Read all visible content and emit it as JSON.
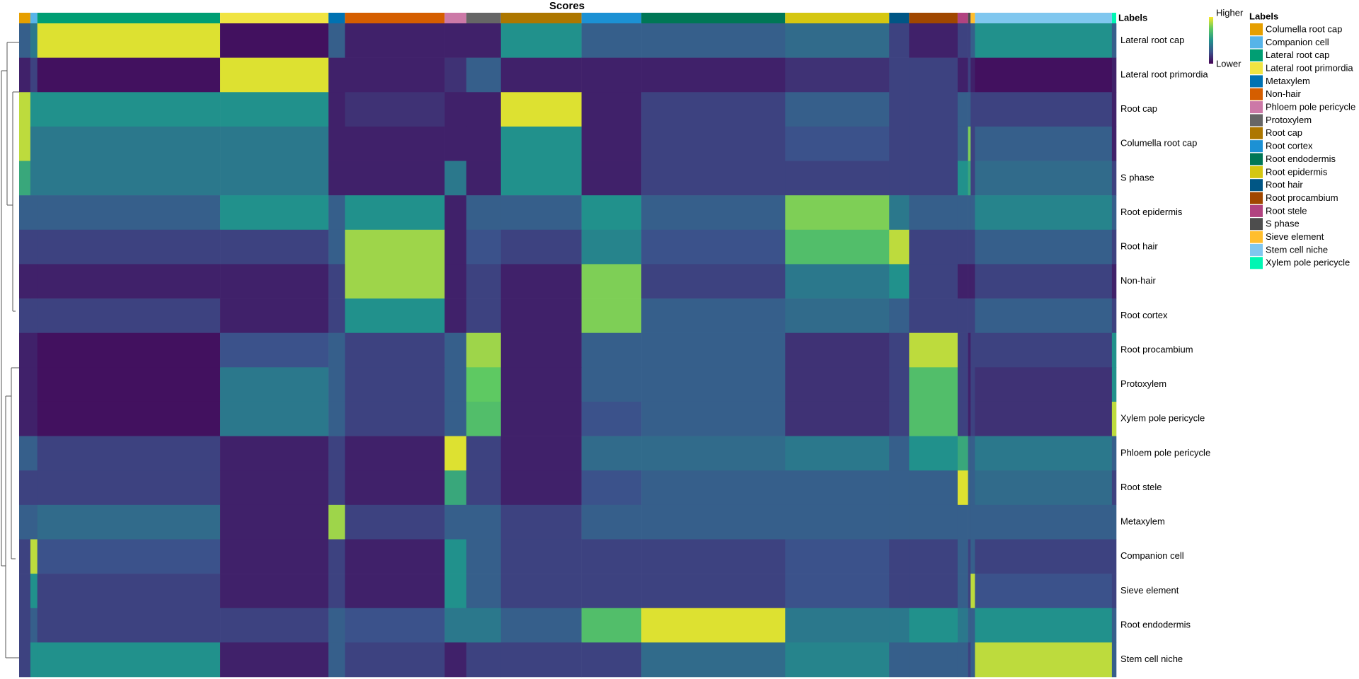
{
  "chart_data": {
    "type": "heatmap",
    "title": "Scores",
    "annotation_title": "Labels",
    "legend_title": "Labels",
    "colorbar_labels": [
      "Higher",
      "Lower"
    ],
    "zlim": [
      0,
      1
    ],
    "colormap": [
      "#440154",
      "#3b528b",
      "#21918c",
      "#5ec962",
      "#fde725"
    ],
    "groups": [
      {
        "label": "Columella root cap",
        "color": "#E69F00",
        "n": 13
      },
      {
        "label": "Companion cell",
        "color": "#56B4E9",
        "n": 8
      },
      {
        "label": "Lateral root cap",
        "color": "#009E73",
        "n": 211
      },
      {
        "label": "Lateral root primordia",
        "color": "#F0E442",
        "n": 125
      },
      {
        "label": "Metaxylem",
        "color": "#0072B2",
        "n": 19
      },
      {
        "label": "Non-hair",
        "color": "#D55E00",
        "n": 115
      },
      {
        "label": "Phloem pole pericycle",
        "color": "#CC79A7",
        "n": 25
      },
      {
        "label": "Protoxylem",
        "color": "#666666",
        "n": 40
      },
      {
        "label": "Root cap",
        "color": "#AD7700",
        "n": 93
      },
      {
        "label": "Root cortex",
        "color": "#1C91D4",
        "n": 69
      },
      {
        "label": "Root endodermis",
        "color": "#007756",
        "n": 166
      },
      {
        "label": "Root epidermis",
        "color": "#D5C711",
        "n": 120
      },
      {
        "label": "Root hair",
        "color": "#005685",
        "n": 23
      },
      {
        "label": "Root procambium",
        "color": "#A04700",
        "n": 56
      },
      {
        "label": "Root stele",
        "color": "#B14380",
        "n": 12
      },
      {
        "label": "S phase",
        "color": "#4D4D4D",
        "n": 3
      },
      {
        "label": "Sieve element",
        "color": "#FFBE2D",
        "n": 5
      },
      {
        "label": "Stem cell niche",
        "color": "#80C7EF",
        "n": 158
      },
      {
        "label": "Xylem pole pericycle",
        "color": "#00F6B3",
        "n": 5
      }
    ],
    "rows": [
      "Lateral root cap",
      "Lateral root primordia",
      "Root cap",
      "Columella root cap",
      "S phase",
      "Root epidermis",
      "Root hair",
      "Non-hair",
      "Root cortex",
      "Root procambium",
      "Protoxylem",
      "Xylem pole pericycle",
      "Phloem pole pericycle",
      "Root stele",
      "Metaxylem",
      "Companion cell",
      "Sieve element",
      "Root endodermis",
      "Stem cell niche"
    ],
    "z": [
      [
        0.3,
        0.4,
        0.95,
        0.05,
        0.3,
        0.1,
        0.1,
        0.1,
        0.5,
        0.3,
        0.3,
        0.35,
        0.2,
        0.1,
        0.2,
        0.2,
        0.3,
        0.5,
        0.3
      ],
      [
        0.1,
        0.2,
        0.05,
        0.95,
        0.1,
        0.1,
        0.15,
        0.3,
        0.1,
        0.1,
        0.1,
        0.15,
        0.2,
        0.2,
        0.1,
        0.2,
        0.1,
        0.05,
        0.1
      ],
      [
        0.9,
        0.5,
        0.5,
        0.5,
        0.1,
        0.15,
        0.1,
        0.1,
        0.95,
        0.1,
        0.2,
        0.3,
        0.2,
        0.2,
        0.3,
        0.3,
        0.2,
        0.2,
        0.1
      ],
      [
        0.9,
        0.4,
        0.4,
        0.4,
        0.1,
        0.1,
        0.1,
        0.1,
        0.5,
        0.1,
        0.2,
        0.25,
        0.2,
        0.2,
        0.3,
        0.8,
        0.2,
        0.3,
        0.1
      ],
      [
        0.6,
        0.4,
        0.4,
        0.4,
        0.1,
        0.1,
        0.4,
        0.1,
        0.5,
        0.1,
        0.2,
        0.2,
        0.2,
        0.2,
        0.5,
        0.6,
        0.2,
        0.35,
        0.2
      ],
      [
        0.3,
        0.3,
        0.3,
        0.5,
        0.3,
        0.5,
        0.1,
        0.3,
        0.3,
        0.5,
        0.3,
        0.8,
        0.4,
        0.3,
        0.3,
        0.3,
        0.3,
        0.45,
        0.3
      ],
      [
        0.2,
        0.2,
        0.2,
        0.2,
        0.3,
        0.85,
        0.1,
        0.25,
        0.2,
        0.45,
        0.25,
        0.7,
        0.9,
        0.2,
        0.2,
        0.2,
        0.2,
        0.3,
        0.2
      ],
      [
        0.1,
        0.1,
        0.1,
        0.1,
        0.2,
        0.85,
        0.1,
        0.2,
        0.1,
        0.8,
        0.2,
        0.4,
        0.5,
        0.2,
        0.1,
        0.1,
        0.1,
        0.2,
        0.1
      ],
      [
        0.2,
        0.2,
        0.2,
        0.1,
        0.2,
        0.5,
        0.1,
        0.2,
        0.1,
        0.8,
        0.3,
        0.35,
        0.3,
        0.2,
        0.2,
        0.2,
        0.2,
        0.3,
        0.2
      ],
      [
        0.1,
        0.1,
        0.05,
        0.25,
        0.3,
        0.2,
        0.3,
        0.85,
        0.1,
        0.3,
        0.3,
        0.15,
        0.2,
        0.9,
        0.2,
        0.1,
        0.2,
        0.2,
        0.5
      ],
      [
        0.1,
        0.1,
        0.05,
        0.4,
        0.3,
        0.2,
        0.3,
        0.75,
        0.1,
        0.3,
        0.3,
        0.15,
        0.2,
        0.7,
        0.2,
        0.1,
        0.2,
        0.15,
        0.5
      ],
      [
        0.1,
        0.1,
        0.05,
        0.4,
        0.3,
        0.2,
        0.3,
        0.7,
        0.1,
        0.25,
        0.3,
        0.15,
        0.2,
        0.7,
        0.2,
        0.1,
        0.2,
        0.15,
        0.9
      ],
      [
        0.3,
        0.3,
        0.2,
        0.1,
        0.2,
        0.1,
        0.95,
        0.2,
        0.1,
        0.35,
        0.35,
        0.4,
        0.3,
        0.5,
        0.6,
        0.3,
        0.3,
        0.4,
        0.3
      ],
      [
        0.2,
        0.2,
        0.2,
        0.1,
        0.2,
        0.1,
        0.6,
        0.2,
        0.1,
        0.25,
        0.3,
        0.3,
        0.3,
        0.3,
        0.95,
        0.3,
        0.3,
        0.35,
        0.2
      ],
      [
        0.3,
        0.3,
        0.35,
        0.1,
        0.85,
        0.2,
        0.3,
        0.3,
        0.2,
        0.3,
        0.3,
        0.3,
        0.3,
        0.3,
        0.3,
        0.3,
        0.3,
        0.3,
        0.3
      ],
      [
        0.2,
        0.9,
        0.25,
        0.1,
        0.2,
        0.1,
        0.5,
        0.3,
        0.2,
        0.2,
        0.2,
        0.25,
        0.2,
        0.2,
        0.3,
        0.2,
        0.3,
        0.2,
        0.2
      ],
      [
        0.2,
        0.5,
        0.2,
        0.1,
        0.2,
        0.1,
        0.5,
        0.3,
        0.2,
        0.2,
        0.2,
        0.25,
        0.2,
        0.2,
        0.3,
        0.2,
        0.9,
        0.25,
        0.2
      ],
      [
        0.2,
        0.3,
        0.2,
        0.2,
        0.3,
        0.25,
        0.4,
        0.4,
        0.3,
        0.7,
        0.95,
        0.4,
        0.4,
        0.5,
        0.4,
        0.3,
        0.3,
        0.5,
        0.3
      ],
      [
        0.2,
        0.5,
        0.5,
        0.1,
        0.3,
        0.2,
        0.1,
        0.2,
        0.2,
        0.2,
        0.35,
        0.45,
        0.3,
        0.3,
        0.3,
        0.2,
        0.3,
        0.9,
        0.3
      ]
    ]
  }
}
